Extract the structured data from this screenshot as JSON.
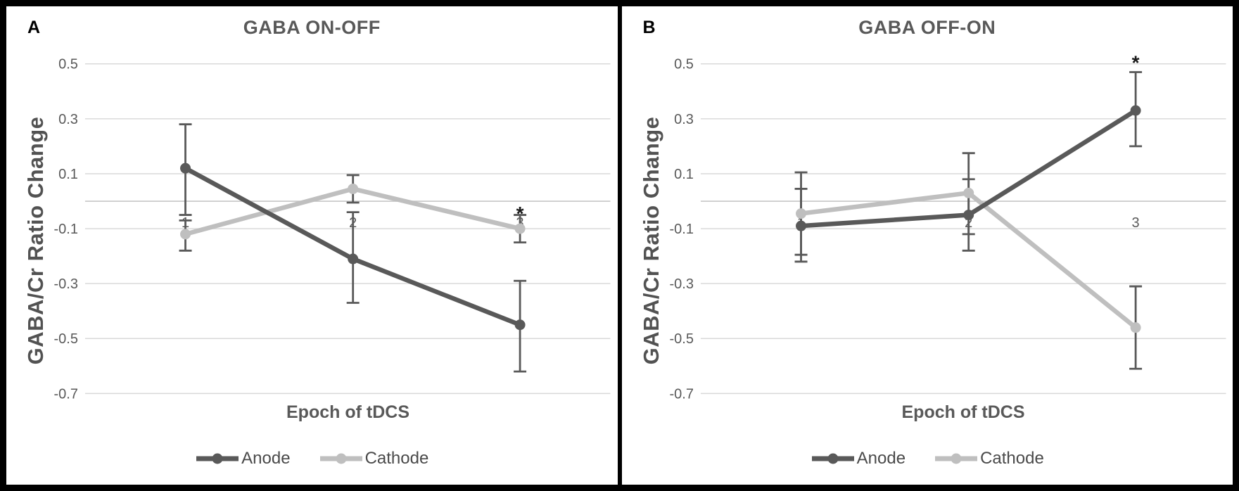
{
  "chart_data": [
    {
      "type": "line",
      "corner_label": "A",
      "title": "GABA ON-OFF",
      "xlabel": "Epoch of tDCS",
      "ylabel": "GABA/Cr Ratio Change",
      "categories": [
        "1",
        "2",
        "3"
      ],
      "yticks": [
        {
          "v": 0.5,
          "label": "0.5"
        },
        {
          "v": 0.3,
          "label": "0.3"
        },
        {
          "v": 0.1,
          "label": "0.1"
        },
        {
          "v": -0.1,
          "label": "-0.1"
        },
        {
          "v": -0.3,
          "label": "-0.3"
        },
        {
          "v": -0.5,
          "label": "-0.5"
        },
        {
          "v": -0.7,
          "label": "-0.7"
        }
      ],
      "ylim": [
        -0.75,
        0.6
      ],
      "grid": true,
      "zero_axis": true,
      "legend_position": "bottom",
      "series": [
        {
          "name": "Anode",
          "color": "#595959",
          "values": [
            0.12,
            -0.21,
            -0.45
          ],
          "err_low": [
            -0.05,
            -0.37,
            -0.62
          ],
          "err_high": [
            0.28,
            -0.04,
            -0.29
          ]
        },
        {
          "name": "Cathode",
          "color": "#bfbfbf",
          "values": [
            -0.12,
            0.045,
            -0.1
          ],
          "err_low": [
            -0.18,
            -0.005,
            -0.15
          ],
          "err_high": [
            -0.07,
            0.095,
            -0.05
          ]
        }
      ],
      "annotations": [
        {
          "text": "*",
          "epoch": 3,
          "value": -0.045
        }
      ]
    },
    {
      "type": "line",
      "corner_label": "B",
      "title": "GABA OFF-ON",
      "xlabel": "Epoch of tDCS",
      "ylabel": "GABA/Cr Ratio Change",
      "categories": [
        "1",
        "2",
        "3"
      ],
      "yticks": [
        {
          "v": 0.5,
          "label": "0.5"
        },
        {
          "v": 0.3,
          "label": "0.3"
        },
        {
          "v": 0.1,
          "label": "0.1"
        },
        {
          "v": -0.1,
          "label": "-0.1"
        },
        {
          "v": -0.3,
          "label": "-0.3"
        },
        {
          "v": -0.5,
          "label": "-0.5"
        },
        {
          "v": -0.7,
          "label": "-0.7"
        }
      ],
      "ylim": [
        -0.75,
        0.6
      ],
      "grid": true,
      "zero_axis": true,
      "legend_position": "bottom",
      "series": [
        {
          "name": "Anode",
          "color": "#595959",
          "values": [
            -0.09,
            -0.05,
            0.33
          ],
          "err_low": [
            -0.22,
            -0.18,
            0.2
          ],
          "err_high": [
            0.045,
            0.08,
            0.47
          ]
        },
        {
          "name": "Cathode",
          "color": "#bfbfbf",
          "values": [
            -0.045,
            0.03,
            -0.46
          ],
          "err_low": [
            -0.195,
            -0.12,
            -0.61
          ],
          "err_high": [
            0.105,
            0.175,
            -0.31
          ]
        }
      ],
      "annotations": [
        {
          "text": "*",
          "epoch": 3,
          "value": 0.505
        }
      ]
    }
  ],
  "colors": {
    "grid": "#d9d9d9",
    "zero_axis": "#c6c6c6",
    "error_bar": "#595959",
    "tick_text": "#595959",
    "title_text": "#595959",
    "annotation_text": "#1a1a1a",
    "background": "#ffffff",
    "border": "#000000"
  }
}
